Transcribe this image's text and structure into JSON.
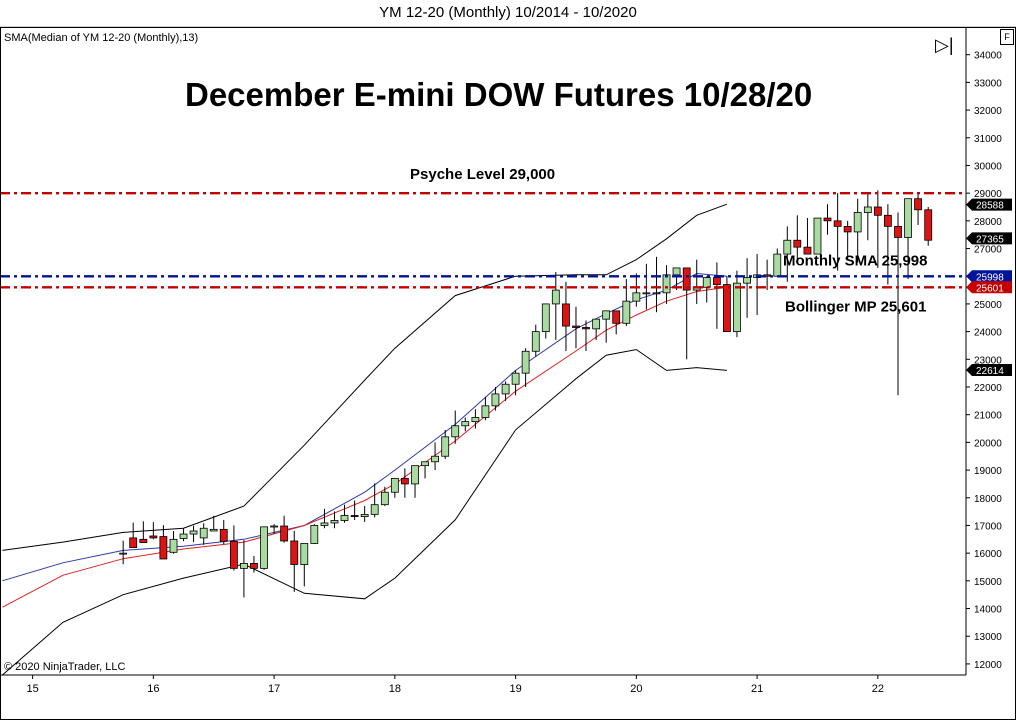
{
  "window": {
    "title": "YM 12-20 (Monthly)  10/2014 - 10/2020"
  },
  "indicator_label": "SMA(Median of YM 12-20 (Monthly),13)",
  "copyright": "© 2020 NinjaTrader, LLC",
  "toolbar": {
    "play_glyph": "▷|",
    "f_button": "F"
  },
  "colors": {
    "up_candle": "#a8dba0",
    "down_candle": "#dd1414",
    "candle_outline": "#000000",
    "sma_line": "#2a3aa8",
    "bollinger_mid": "#e02020",
    "bollinger_band": "#000000",
    "red_level": "#c40000",
    "blue_level": "#00139a"
  },
  "chart_data": {
    "type": "candlestick",
    "title": "December E-mini DOW Futures 10/28/20",
    "x_ticks": [
      "15",
      "16",
      "17",
      "18",
      "19",
      "20",
      "21",
      "22"
    ],
    "y_ticks": [
      "12000",
      "13000",
      "14000",
      "15000",
      "16000",
      "17000",
      "18000",
      "19000",
      "20000",
      "21000",
      "22000",
      "23000",
      "24000",
      "25000",
      "26000",
      "27000",
      "28000",
      "29000",
      "30000",
      "31000",
      "32000",
      "33000",
      "34000"
    ],
    "ylim": [
      11600,
      35000
    ],
    "xlim": [
      14.73,
      22.73
    ],
    "grid": false,
    "annotations": [
      {
        "text": "Psyche Level 29,000",
        "value": 29000
      },
      {
        "text": "Monthly SMA 25,998",
        "value": 25998
      },
      {
        "text": "Bollinger MP 25,601",
        "value": 25601
      }
    ],
    "price_markers": [
      {
        "label": "28588",
        "value": 28588
      },
      {
        "label": "27365",
        "value": 27365
      },
      {
        "label": "25998",
        "value": 25998,
        "color": "#00139a"
      },
      {
        "label": "25601",
        "value": 25601,
        "color": "#c40000"
      },
      {
        "label": "22614",
        "value": 22614
      }
    ],
    "levels": [
      {
        "name": "Psyche Level",
        "value": 29000,
        "color": "#c40000"
      },
      {
        "name": "Monthly SMA",
        "value": 25998,
        "color": "#00139a"
      },
      {
        "name": "Bollinger MP",
        "value": 25601,
        "color": "#c40000"
      }
    ],
    "candles": [
      [
        15.75,
        16000,
        16450,
        16000,
        15600
      ],
      [
        15.833,
        16550,
        17100,
        16200,
        16400
      ],
      [
        15.917,
        16500,
        17150,
        16380,
        16600
      ],
      [
        16.0,
        16620,
        17120,
        16550,
        16500
      ],
      [
        16.083,
        16600,
        17010,
        15790,
        15950
      ],
      [
        16.167,
        16030,
        16800,
        16500,
        15980
      ],
      [
        16.25,
        16530,
        16900,
        16690,
        16430
      ],
      [
        16.333,
        16690,
        16990,
        16800,
        16400
      ],
      [
        16.417,
        16550,
        17080,
        16900,
        16300
      ],
      [
        16.5,
        16800,
        17350,
        16860,
        16800
      ],
      [
        16.583,
        16860,
        17200,
        16430,
        16320
      ],
      [
        16.667,
        16430,
        17000,
        15450,
        15370
      ],
      [
        16.75,
        15450,
        16470,
        15630,
        14400
      ],
      [
        16.833,
        15630,
        15900,
        15450,
        15300
      ],
      [
        16.917,
        15450,
        16900,
        16950,
        15400
      ],
      [
        17.0,
        16950,
        17050,
        16980,
        16700
      ],
      [
        17.083,
        16980,
        17350,
        16440,
        16380
      ],
      [
        17.167,
        16440,
        16800,
        15590,
        14600
      ],
      [
        17.25,
        15590,
        16300,
        16350,
        14800
      ],
      [
        17.333,
        16350,
        17050,
        17000,
        16330
      ],
      [
        17.417,
        17000,
        17600,
        17090,
        16900
      ],
      [
        17.5,
        17090,
        17510,
        17180,
        16900
      ],
      [
        17.583,
        17180,
        17750,
        17360,
        17100
      ],
      [
        17.667,
        17360,
        17900,
        17320,
        17200
      ],
      [
        17.75,
        17320,
        17700,
        17400,
        17130
      ],
      [
        17.833,
        17400,
        18520,
        17750,
        17290
      ],
      [
        17.917,
        17750,
        18400,
        18200,
        17700
      ],
      [
        18.0,
        18200,
        18700,
        18700,
        18000
      ],
      [
        18.083,
        18700,
        19060,
        18500,
        18000
      ],
      [
        18.167,
        18500,
        19000,
        19160,
        18000
      ],
      [
        18.25,
        19160,
        19200,
        19300,
        18700
      ],
      [
        18.333,
        19300,
        20000,
        19500,
        19000
      ],
      [
        18.417,
        19500,
        20450,
        20200,
        19400
      ],
      [
        18.5,
        20200,
        21150,
        20600,
        19950
      ],
      [
        18.583,
        20600,
        20900,
        20750,
        20400
      ],
      [
        18.667,
        20750,
        21200,
        20900,
        20500
      ],
      [
        18.75,
        20900,
        21650,
        21320,
        20800
      ],
      [
        18.833,
        21320,
        22000,
        21750,
        21150
      ],
      [
        18.917,
        21750,
        22200,
        22100,
        21500
      ],
      [
        19.0,
        22100,
        22600,
        22500,
        21700
      ],
      [
        19.083,
        22500,
        23400,
        23290,
        22000
      ],
      [
        19.167,
        23290,
        24250,
        24000,
        23100
      ],
      [
        19.25,
        24000,
        24550,
        25000,
        23750
      ],
      [
        19.333,
        25000,
        26150,
        25500,
        23700
      ],
      [
        19.417,
        25000,
        25800,
        24200,
        23300
      ],
      [
        19.5,
        24200,
        24900,
        24150,
        23400
      ],
      [
        19.583,
        24150,
        24400,
        24100,
        23300
      ],
      [
        19.667,
        24100,
        24300,
        24450,
        23700
      ],
      [
        19.75,
        24450,
        24600,
        24750,
        23600
      ],
      [
        19.833,
        24750,
        24600,
        24300,
        23900
      ],
      [
        19.917,
        24300,
        25900,
        25100,
        24200
      ],
      [
        20.0,
        25100,
        26100,
        25400,
        24900
      ],
      [
        20.083,
        25400,
        26450,
        25400,
        24800
      ],
      [
        20.167,
        25400,
        26700,
        25400,
        24700
      ],
      [
        20.25,
        25400,
        26400,
        26050,
        25000
      ],
      [
        20.333,
        26050,
        26200,
        26300,
        25500
      ],
      [
        20.417,
        26300,
        26200,
        25500,
        23000
      ],
      [
        20.5,
        25500,
        26600,
        25600,
        25000
      ],
      [
        20.583,
        25600,
        26000,
        25950,
        25050
      ],
      [
        20.667,
        25950,
        26500,
        25700,
        24100
      ],
      [
        20.75,
        25700,
        26000,
        24000,
        24400
      ],
      [
        20.833,
        24000,
        26200,
        25750,
        23800
      ],
      [
        20.917,
        25750,
        26650,
        25950,
        24500
      ],
      [
        21.0,
        25950,
        26800,
        26050,
        24600
      ],
      [
        21.083,
        26050,
        26600,
        26000,
        25500
      ],
      [
        21.167,
        26000,
        27000,
        26800,
        26000
      ],
      [
        21.25,
        26800,
        27800,
        27300,
        25800
      ],
      [
        21.333,
        27300,
        28200,
        27050,
        26500
      ],
      [
        21.417,
        27050,
        28100,
        26800,
        26900
      ],
      [
        21.5,
        26800,
        28000,
        28100,
        26800
      ],
      [
        21.583,
        28100,
        28600,
        28000,
        27500
      ],
      [
        21.667,
        28000,
        29000,
        27800,
        26200
      ],
      [
        21.75,
        27800,
        28000,
        27600,
        26600
      ],
      [
        21.833,
        27600,
        28800,
        28300,
        26500
      ],
      [
        21.917,
        28300,
        29000,
        28500,
        27300
      ],
      [
        22.0,
        28500,
        29100,
        28200,
        26300
      ],
      [
        22.083,
        28200,
        28600,
        27800,
        25700
      ],
      [
        22.167,
        27800,
        28300,
        27400,
        21700
      ],
      [
        22.25,
        27400,
        27600,
        28800,
        25900
      ],
      [
        22.333,
        28800,
        29020,
        28400,
        27850
      ],
      [
        22.417,
        28400,
        28500,
        27300,
        27100
      ]
    ],
    "series": [
      {
        "name": "SMA(Median of YM 12-20 (Monthly),13)",
        "x": [
          14.75,
          15.25,
          15.75,
          16.25,
          16.75,
          17.25,
          17.75,
          18.0,
          18.5,
          19.0,
          19.5,
          19.75,
          20.0,
          20.25,
          20.5,
          20.75
        ],
        "values": [
          15000,
          15650,
          16100,
          16250,
          16500,
          17000,
          18200,
          19000,
          20650,
          22600,
          24100,
          24650,
          25150,
          25500,
          26100,
          26000
        ]
      },
      {
        "name": "Bollinger MP",
        "x": [
          14.75,
          15.25,
          15.75,
          16.25,
          16.75,
          17.25,
          17.75,
          18.0,
          18.5,
          19.0,
          19.5,
          19.75,
          20.0,
          20.25,
          20.5,
          20.75
        ],
        "values": [
          14050,
          15200,
          15800,
          16150,
          16400,
          17000,
          17900,
          18500,
          20050,
          21850,
          23300,
          24050,
          24600,
          25100,
          25450,
          25601
        ]
      },
      {
        "name": "Bollinger Upper",
        "x": [
          14.75,
          15.25,
          15.75,
          16.25,
          16.75,
          17.25,
          17.75,
          18.0,
          18.5,
          19.0,
          19.5,
          19.75,
          20.0,
          20.25,
          20.5,
          20.75
        ],
        "values": [
          16100,
          16400,
          16750,
          16900,
          17700,
          19900,
          22250,
          23400,
          25300,
          26000,
          26050,
          26050,
          26600,
          27350,
          28200,
          28600
        ]
      },
      {
        "name": "Bollinger Lower",
        "x": [
          14.75,
          15.25,
          15.75,
          16.25,
          16.75,
          17.25,
          17.75,
          18.0,
          18.5,
          19.0,
          19.5,
          19.75,
          20.0,
          20.25,
          20.5,
          20.75
        ],
        "values": [
          11600,
          13500,
          14500,
          15100,
          15600,
          14550,
          14350,
          15100,
          17200,
          20450,
          22300,
          23150,
          23350,
          22600,
          22700,
          22600
        ]
      }
    ]
  }
}
